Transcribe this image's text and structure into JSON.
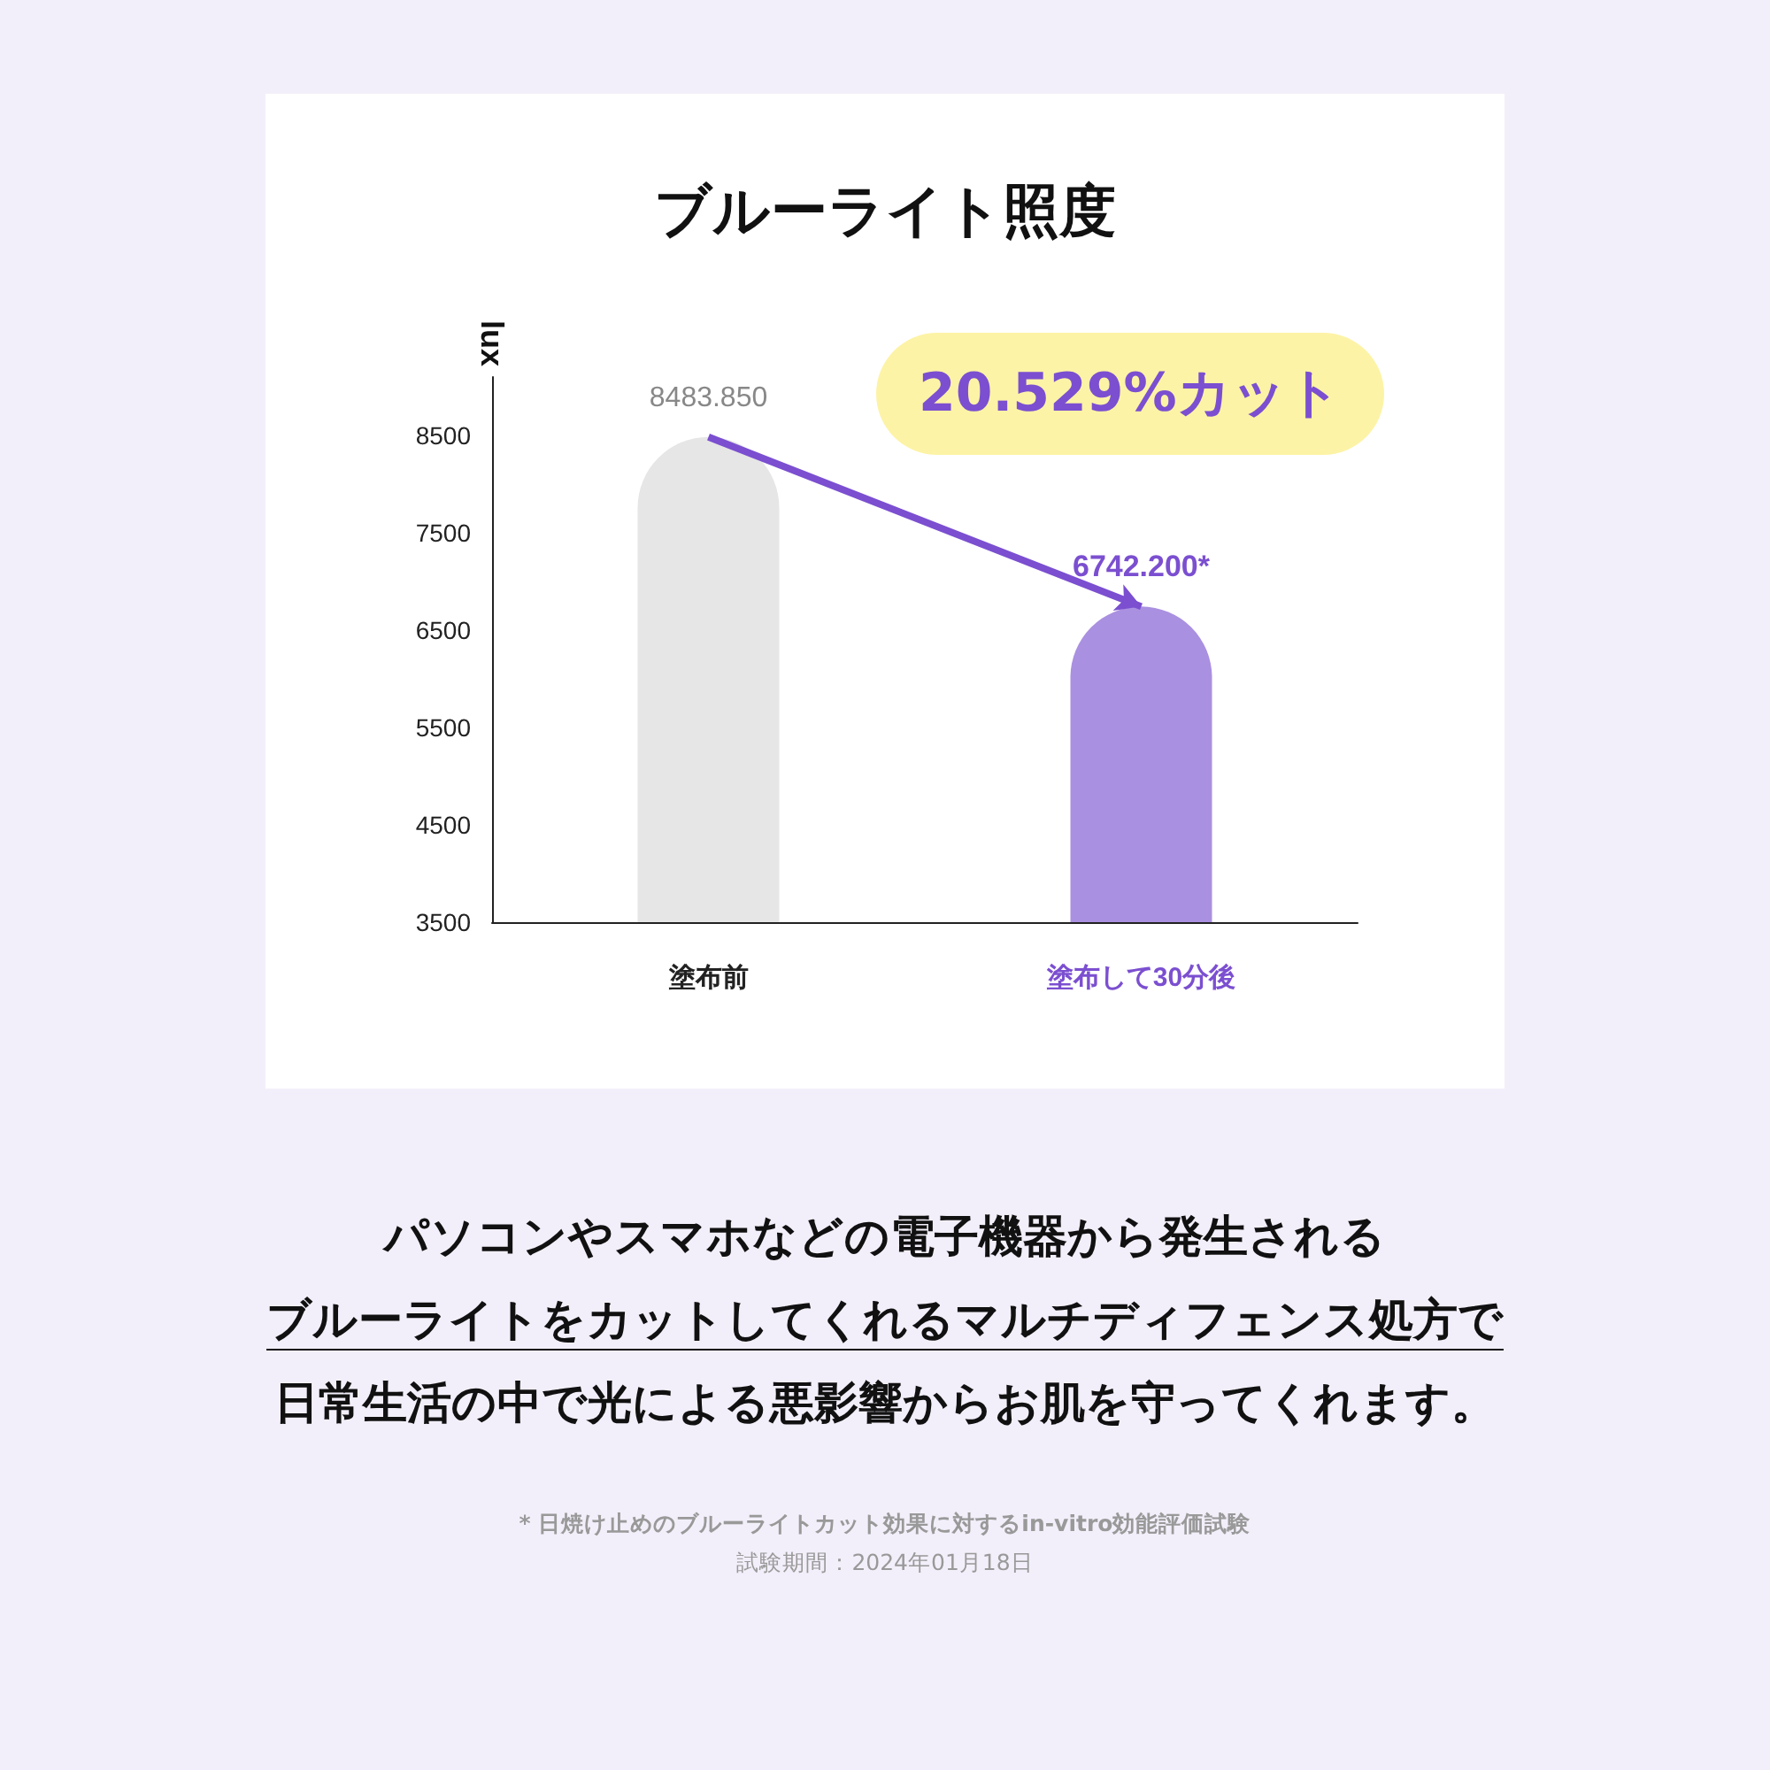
{
  "chart_data": {
    "type": "bar",
    "title": "ブルーライト照度",
    "ylabel": "lux",
    "categories": [
      "塗布前",
      "塗布して30分後"
    ],
    "values": [
      8483.85,
      6742.2
    ],
    "colors": [
      "#e6e6e6",
      "#aa90e0"
    ],
    "value_labels": [
      "8483.850",
      "6742.200*"
    ],
    "ylim": [
      3500,
      9100
    ],
    "yticks": [
      3500,
      4500,
      5500,
      6500,
      7500,
      8500
    ],
    "grid": false,
    "annotations": [
      "20.529%カット",
      "パソコンやスマホなどの電子機器から発生される",
      "ブルーライトをカットしてくれるマルチディフェンス処方で",
      "日常生活の中で光による悪影響からお肌を守ってくれます。",
      "* 日焼け止めのブルーライトカット効果に対するin-vitro効能評価試験",
      "試験期間：2024年01月18日"
    ]
  }
}
